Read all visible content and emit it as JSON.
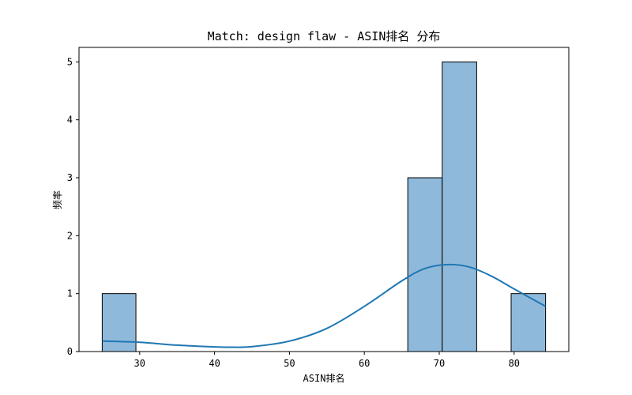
{
  "chart_data": {
    "type": "bar",
    "title": "Match: design flaw - ASIN排名 分布",
    "xlabel": "ASIN排名",
    "ylabel": "频率",
    "xlim": [
      21.9,
      87.3
    ],
    "ylim": [
      0,
      5.25
    ],
    "xticks": [
      30,
      40,
      50,
      60,
      70,
      80
    ],
    "yticks": [
      0,
      1,
      2,
      3,
      4,
      5
    ],
    "bins": [
      {
        "x0": 25.0,
        "x1": 29.5,
        "count": 1
      },
      {
        "x0": 29.5,
        "x1": 34.0,
        "count": 0
      },
      {
        "x0": 34.0,
        "x1": 38.5,
        "count": 0
      },
      {
        "x0": 38.5,
        "x1": 43.0,
        "count": 0
      },
      {
        "x0": 43.0,
        "x1": 47.5,
        "count": 0
      },
      {
        "x0": 47.5,
        "x1": 52.0,
        "count": 0
      },
      {
        "x0": 52.0,
        "x1": 56.5,
        "count": 0
      },
      {
        "x0": 56.5,
        "x1": 61.0,
        "count": 0
      },
      {
        "x0": 61.0,
        "x1": 65.8,
        "count": 0
      },
      {
        "x0": 65.8,
        "x1": 70.4,
        "count": 3
      },
      {
        "x0": 70.4,
        "x1": 75.0,
        "count": 5
      },
      {
        "x0": 75.0,
        "x1": 79.6,
        "count": 0
      },
      {
        "x0": 79.6,
        "x1": 84.2,
        "count": 1
      }
    ],
    "kde": {
      "x": [
        25,
        30,
        35,
        40,
        42,
        45,
        50,
        55,
        60,
        65,
        68,
        71,
        74,
        77,
        80,
        84.2
      ],
      "y": [
        0.18,
        0.16,
        0.11,
        0.08,
        0.075,
        0.085,
        0.18,
        0.4,
        0.78,
        1.22,
        1.43,
        1.5,
        1.46,
        1.3,
        1.08,
        0.78
      ]
    },
    "bar_color": "#8fb9db",
    "bar_edge": "#000000",
    "kde_color": "#1f77b4",
    "grid": false
  }
}
